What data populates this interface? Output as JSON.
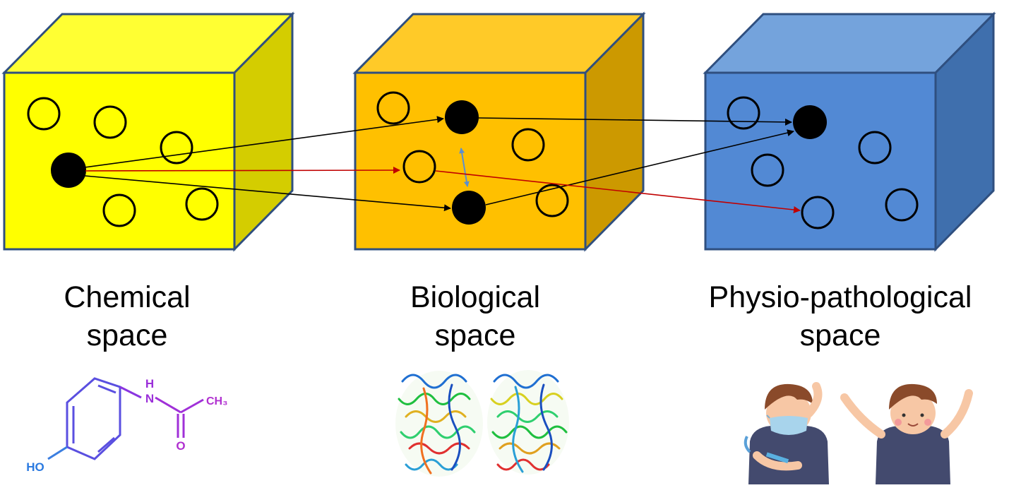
{
  "spaces": [
    {
      "id": "chemical",
      "title_line1": "Chemical",
      "title_line2": "space",
      "colors": {
        "front": "#ffff00",
        "top": "#ffff33",
        "side": "#d4cd00"
      }
    },
    {
      "id": "biological",
      "title_line1": "Biological",
      "title_line2": "space",
      "colors": {
        "front": "#ffc000",
        "top": "#ffca28",
        "side": "#cc9900"
      }
    },
    {
      "id": "physio",
      "title_line1": "Physio-pathological",
      "title_line2": "space",
      "colors": {
        "front": "#5289d4",
        "top": "#74a3dc",
        "side": "#3f6fad"
      }
    }
  ],
  "molecule": {
    "atom_N": "H\nN",
    "atom_N_letter": "N",
    "atom_H": "H",
    "atom_O": "O",
    "group_CH3": "CH₃",
    "group_HO": "HO"
  },
  "colors": {
    "outline": "#2f4f7f",
    "link": "#000000",
    "highlight_link": "#c00000",
    "relation": "#5b8fd1"
  },
  "icons": [
    "molecule-structure-icon",
    "protein-structure-icon",
    "sick-child-icon",
    "healthy-child-icon"
  ]
}
